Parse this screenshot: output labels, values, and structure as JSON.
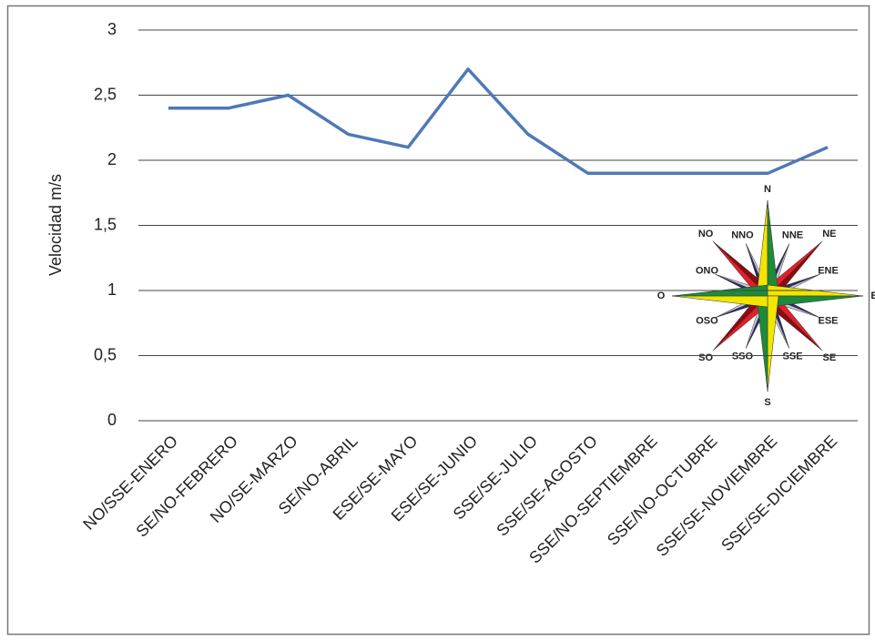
{
  "chart_data": {
    "type": "line",
    "y_label": "Velocidad  m/s",
    "categories": [
      "NO/SSE-ENERO",
      "SE/NO-FEBRERO",
      "NO/SE-MARZO",
      "SE/NO-ABRIL",
      "ESE/SE-MAYO",
      "ESE/SE-JUNIO",
      "SSE/SE-JULIO",
      "SSE/SE-AGOSTO",
      "SSE/NO-SEPTIEMBRE",
      "SSE/NO-OCTUBRE",
      "SSE/SE-NOVIEMBRE",
      "SSE/SE-DICIEMBRE"
    ],
    "values": [
      2.4,
      2.4,
      2.5,
      2.2,
      2.1,
      2.7,
      2.2,
      1.9,
      1.9,
      1.9,
      1.9,
      2.1
    ],
    "color": "#4f79b7",
    "ylim": [
      0,
      3
    ],
    "yticks": [
      0,
      {
        "value": 0.5,
        "label": "0,5"
      },
      1,
      {
        "value": 1.5,
        "label": "1,5"
      },
      2,
      {
        "value": 2.5,
        "label": "2,5"
      },
      3
    ],
    "grid": true,
    "compass_labels": [
      "N",
      "NNE",
      "NE",
      "ENE",
      "E",
      "ESE",
      "SE",
      "SSE",
      "S",
      "SSO",
      "SO",
      "OSO",
      "O",
      "ONO",
      "NO",
      "NNO"
    ]
  }
}
